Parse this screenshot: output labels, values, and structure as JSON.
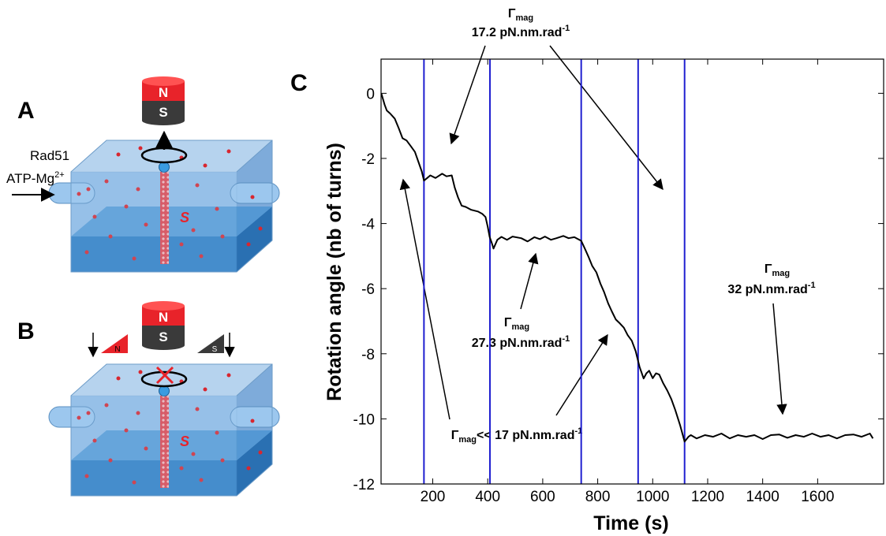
{
  "panel_a": {
    "label": "A",
    "magnet_north": "N",
    "magnet_south": "S",
    "reagent": "Rad51",
    "cofactor": "ATP-Mg",
    "cofactor_charge": "2+",
    "molecule": "S"
  },
  "panel_b": {
    "label": "B",
    "magnet_north": "N",
    "magnet_south": "S",
    "wedge_north": "N",
    "wedge_south": "S",
    "molecule": "S"
  },
  "chart_data": {
    "type": "line",
    "panel_label": "C",
    "x_label": "Time (s)",
    "y_label": "Rotation angle (nb of turns)",
    "xlim": [
      12,
      1840
    ],
    "ylim": [
      -12,
      1.05
    ],
    "xticks": [
      200,
      400,
      600,
      800,
      1000,
      1200,
      1400,
      1600
    ],
    "yticks": [
      0,
      -2,
      -4,
      -6,
      -8,
      -10,
      -12
    ],
    "x": [
      13,
      25,
      33,
      45,
      62,
      75,
      90,
      105,
      120,
      135,
      148,
      160,
      168,
      180,
      191,
      210,
      234,
      250,
      269,
      280,
      292,
      305,
      320,
      340,
      364,
      380,
      392,
      400,
      407,
      415,
      421,
      435,
      450,
      470,
      490,
      522,
      545,
      570,
      590,
      608,
      630,
      650,
      675,
      694,
      715,
      740,
      752,
      766,
      780,
      795,
      810,
      823,
      838,
      852,
      866,
      881,
      895,
      909,
      924,
      938,
      952,
      967,
      977,
      987,
      1000,
      1012,
      1024,
      1038,
      1053,
      1068,
      1082,
      1100,
      1116,
      1130,
      1139,
      1160,
      1190,
      1220,
      1250,
      1280,
      1310,
      1340,
      1370,
      1400,
      1430,
      1460,
      1490,
      1520,
      1550,
      1580,
      1610,
      1640,
      1670,
      1700,
      1730,
      1760,
      1790,
      1801
    ],
    "series": [
      {
        "color": "#000000",
        "values": [
          0,
          -0.35,
          -0.53,
          -0.62,
          -0.78,
          -1.05,
          -1.38,
          -1.45,
          -1.62,
          -1.8,
          -2.11,
          -2.4,
          -2.68,
          -2.6,
          -2.52,
          -2.6,
          -2.47,
          -2.55,
          -2.52,
          -2.9,
          -3.2,
          -3.45,
          -3.49,
          -3.58,
          -3.63,
          -3.7,
          -3.8,
          -4.1,
          -4.41,
          -4.6,
          -4.77,
          -4.5,
          -4.41,
          -4.5,
          -4.4,
          -4.45,
          -4.55,
          -4.42,
          -4.48,
          -4.4,
          -4.5,
          -4.45,
          -4.38,
          -4.45,
          -4.42,
          -4.53,
          -4.75,
          -5.01,
          -5.3,
          -5.5,
          -5.85,
          -6.1,
          -6.45,
          -6.71,
          -6.95,
          -7.07,
          -7.2,
          -7.43,
          -7.6,
          -7.92,
          -8.4,
          -8.76,
          -8.6,
          -8.52,
          -8.75,
          -8.6,
          -8.64,
          -8.9,
          -9.13,
          -9.4,
          -9.73,
          -10.2,
          -10.7,
          -10.55,
          -10.5,
          -10.6,
          -10.5,
          -10.55,
          -10.45,
          -10.6,
          -10.5,
          -10.55,
          -10.5,
          -10.62,
          -10.5,
          -10.48,
          -10.58,
          -10.5,
          -10.55,
          -10.45,
          -10.55,
          -10.5,
          -10.6,
          -10.5,
          -10.48,
          -10.55,
          -10.45,
          -10.6
        ]
      }
    ],
    "markers": {
      "color": "#1f1fd0",
      "x": [
        168,
        408,
        740,
        947,
        1116
      ]
    },
    "annotations": [
      {
        "symbol": "Γ",
        "subscript": "mag",
        "text": "17.2 pN.nm.rad",
        "superscript": "-1"
      },
      {
        "symbol": "Γ",
        "subscript": "mag",
        "text": "27.3 pN.nm.rad",
        "superscript": "-1"
      },
      {
        "symbol": "Γ",
        "subscript": "mag",
        "text": "32 pN.nm.rad",
        "superscript": "-1"
      },
      {
        "symbol": "Γ",
        "subscript": "mag",
        "text": "<< 17 pN.nm.rad",
        "superscript": "-1"
      }
    ]
  }
}
